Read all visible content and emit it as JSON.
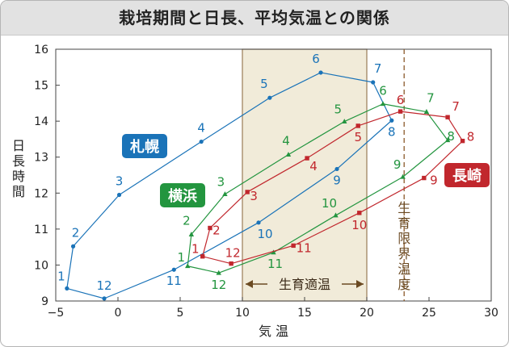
{
  "chart_data": {
    "type": "line",
    "title": "栽培期間と日長、平均気温との関係",
    "xlabel": "気 温",
    "ylabel": "日長時間",
    "xlim": [
      -5,
      30
    ],
    "ylim": [
      9,
      16
    ],
    "xticks": [
      "−5",
      "0",
      "5",
      "10",
      "15",
      "20",
      "25",
      "30"
    ],
    "yticks": [
      "9",
      "10",
      "11",
      "12",
      "13",
      "14",
      "15",
      "16"
    ],
    "band": {
      "from": 10,
      "to": 20,
      "label": "生育適温"
    },
    "limit_line": {
      "x": 23,
      "label": "生育限界温度"
    },
    "series": [
      {
        "name": "札幌",
        "color": "#1a73b8",
        "marker": "circle",
        "points": [
          {
            "m": "1",
            "x": -4.1,
            "y": 9.35
          },
          {
            "m": "2",
            "x": -3.6,
            "y": 10.52
          },
          {
            "m": "3",
            "x": 0.1,
            "y": 11.95
          },
          {
            "m": "4",
            "x": 6.7,
            "y": 13.43
          },
          {
            "m": "5",
            "x": 12.2,
            "y": 14.65
          },
          {
            "m": "6",
            "x": 16.3,
            "y": 15.35
          },
          {
            "m": "7",
            "x": 20.5,
            "y": 15.08
          },
          {
            "m": "8",
            "x": 22.0,
            "y": 14.02
          },
          {
            "m": "9",
            "x": 17.6,
            "y": 12.67
          },
          {
            "m": "10",
            "x": 11.3,
            "y": 11.18
          },
          {
            "m": "11",
            "x": 4.5,
            "y": 9.87
          },
          {
            "m": "12",
            "x": -1.1,
            "y": 9.07
          }
        ]
      },
      {
        "name": "横浜",
        "color": "#23953f",
        "marker": "triangle",
        "points": [
          {
            "m": "1",
            "x": 5.6,
            "y": 9.97
          },
          {
            "m": "2",
            "x": 5.9,
            "y": 10.85
          },
          {
            "m": "3",
            "x": 8.6,
            "y": 11.97
          },
          {
            "m": "4",
            "x": 13.7,
            "y": 13.07
          },
          {
            "m": "5",
            "x": 18.2,
            "y": 13.99
          },
          {
            "m": "6",
            "x": 21.3,
            "y": 14.48
          },
          {
            "m": "7",
            "x": 24.8,
            "y": 14.26
          },
          {
            "m": "8",
            "x": 26.5,
            "y": 13.47
          },
          {
            "m": "9",
            "x": 22.9,
            "y": 12.45
          },
          {
            "m": "10",
            "x": 17.5,
            "y": 11.38
          },
          {
            "m": "11",
            "x": 12.5,
            "y": 10.35
          },
          {
            "m": "12",
            "x": 8.1,
            "y": 9.78
          }
        ]
      },
      {
        "name": "長崎",
        "color": "#c1272d",
        "marker": "square",
        "points": [
          {
            "m": "1",
            "x": 6.8,
            "y": 10.24
          },
          {
            "m": "2",
            "x": 7.4,
            "y": 11.03
          },
          {
            "m": "3",
            "x": 10.4,
            "y": 12.03
          },
          {
            "m": "4",
            "x": 15.2,
            "y": 12.97
          },
          {
            "m": "5",
            "x": 19.3,
            "y": 13.87
          },
          {
            "m": "6",
            "x": 22.7,
            "y": 14.27
          },
          {
            "m": "7",
            "x": 26.5,
            "y": 14.11
          },
          {
            "m": "8",
            "x": 27.7,
            "y": 13.45
          },
          {
            "m": "9",
            "x": 24.6,
            "y": 12.42
          },
          {
            "m": "10",
            "x": 19.4,
            "y": 11.45
          },
          {
            "m": "11",
            "x": 14.1,
            "y": 10.54
          },
          {
            "m": "12",
            "x": 9.1,
            "y": 10.04
          }
        ]
      }
    ]
  }
}
